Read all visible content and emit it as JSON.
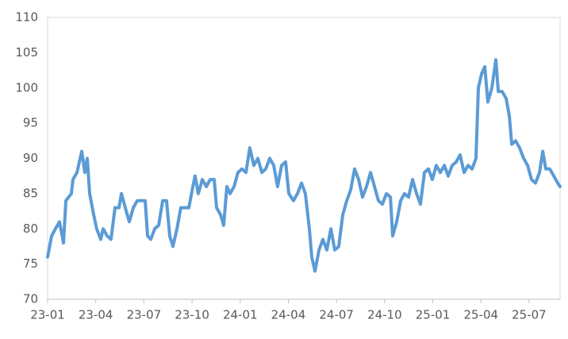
{
  "chart_data": {
    "type": "line",
    "color": "#5b9bd5",
    "grid": false,
    "x": [
      0,
      0.25,
      0.49,
      0.74,
      0.99,
      1.14,
      1.48,
      1.58,
      1.83,
      2.13,
      2.32,
      2.47,
      2.62,
      2.87,
      3.06,
      3.31,
      3.46,
      3.71,
      3.95,
      4.2,
      4.45,
      4.6,
      4.84,
      5.09,
      5.34,
      5.59,
      5.83,
      6.08,
      6.23,
      6.43,
      6.67,
      6.92,
      7.17,
      7.41,
      7.61,
      7.81,
      8.06,
      8.3,
      8.55,
      8.8,
      9.05,
      9.19,
      9.39,
      9.64,
      9.89,
      10.13,
      10.38,
      10.53,
      10.78,
      10.97,
      11.17,
      11.37,
      11.62,
      11.86,
      12.11,
      12.36,
      12.6,
      12.85,
      13.1,
      13.35,
      13.59,
      13.84,
      14.09,
      14.33,
      14.58,
      14.83,
      15.03,
      15.32,
      15.57,
      15.82,
      16.06,
      16.31,
      16.46,
      16.66,
      16.91,
      17.15,
      17.4,
      17.65,
      17.89,
      18.14,
      18.39,
      18.64,
      18.88,
      19.13,
      19.38,
      19.62,
      19.87,
      20.12,
      20.37,
      20.61,
      20.86,
      21.11,
      21.36,
      21.5,
      21.75,
      22.0,
      22.24,
      22.49,
      22.74,
      22.99,
      23.23,
      23.48,
      23.73,
      23.97,
      24.22,
      24.47,
      24.72,
      24.96,
      25.21,
      25.46,
      25.7,
      25.95,
      26.2,
      26.45,
      26.69,
      26.84,
      27.04,
      27.24,
      27.43,
      27.68,
      27.93,
      28.08,
      28.32,
      28.57,
      28.77,
      28.92,
      29.16,
      29.41,
      29.66,
      29.91,
      30.15,
      30.4,
      30.65,
      30.85,
      31.04,
      31.29,
      31.54,
      31.78,
      31.93
    ],
    "values": [
      76,
      79,
      80,
      81,
      78,
      84,
      85,
      87,
      88,
      91,
      88,
      90,
      85,
      82,
      80,
      78.5,
      80,
      79,
      78.5,
      83,
      83,
      85,
      83,
      81,
      83,
      84,
      84,
      84,
      79,
      78.5,
      80,
      80.5,
      84,
      84,
      79,
      77.5,
      80,
      83,
      83,
      83,
      86,
      87.5,
      85,
      87,
      86,
      87,
      87,
      83,
      82,
      80.5,
      86,
      85,
      86,
      88,
      88.5,
      88,
      91.5,
      89,
      90,
      88,
      88.5,
      90,
      89,
      86,
      89,
      89.5,
      85,
      84,
      85,
      86.5,
      85,
      80,
      76,
      74,
      77,
      78.5,
      77,
      80,
      77,
      77.5,
      82,
      84,
      85.5,
      88.5,
      87,
      84.5,
      86,
      88,
      86,
      84,
      83.5,
      85,
      84.5,
      79,
      81,
      84,
      85,
      84.5,
      87,
      85,
      83.5,
      88,
      88.5,
      87,
      89,
      88,
      89,
      87.5,
      89,
      89.5,
      90.5,
      88,
      89,
      88.5,
      90,
      100,
      102,
      103,
      98,
      100,
      104,
      99.5,
      99.5,
      98.5,
      96,
      92,
      92.5,
      91.5,
      90,
      89,
      87,
      86.5,
      88,
      91,
      88.5,
      88.5,
      87.5,
      86.5,
      86
    ],
    "xlim": [
      0,
      31.93
    ],
    "xticks": [
      {
        "value": 0,
        "label": "23-01"
      },
      {
        "value": 3,
        "label": "23-04"
      },
      {
        "value": 6,
        "label": "23-07"
      },
      {
        "value": 9,
        "label": "23-10"
      },
      {
        "value": 12,
        "label": "24-01"
      },
      {
        "value": 15,
        "label": "24-04"
      },
      {
        "value": 18,
        "label": "24-07"
      },
      {
        "value": 21,
        "label": "24-10"
      },
      {
        "value": 24,
        "label": "25-01"
      },
      {
        "value": 27,
        "label": "25-04"
      },
      {
        "value": 30,
        "label": "25-07"
      }
    ],
    "ylim": [
      70,
      110
    ],
    "yticks": [
      70,
      75,
      80,
      85,
      90,
      95,
      100,
      105,
      110
    ]
  }
}
